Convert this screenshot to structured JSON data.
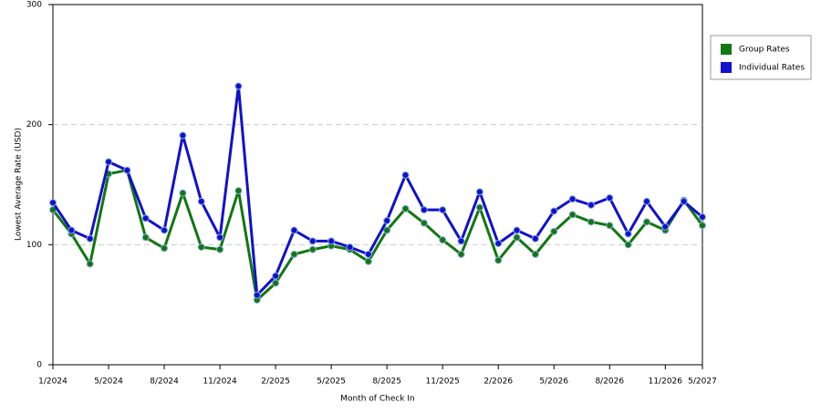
{
  "chart_data": {
    "type": "line",
    "y_label": "Lowest Average Rate (USD)",
    "x_label": "Month of Check In",
    "categories": [
      "1/2024",
      null,
      null,
      "5/2024",
      null,
      null,
      "8/2024",
      null,
      null,
      "11/2024",
      null,
      null,
      "2/2025",
      null,
      null,
      "5/2025",
      null,
      null,
      "8/2025",
      null,
      null,
      "11/2025",
      null,
      null,
      "2/2026",
      null,
      null,
      "5/2026",
      null,
      null,
      "8/2026",
      null,
      null,
      "11/2026",
      null,
      "5/2027"
    ],
    "series": [
      {
        "name": "Group Rates",
        "color": "#117711",
        "values": [
          129,
          109,
          84,
          159,
          162,
          106,
          97,
          143,
          98,
          96,
          145,
          54,
          68,
          92,
          96,
          99,
          96,
          86,
          112,
          130,
          118,
          104,
          92,
          131,
          87,
          106,
          92,
          111,
          125,
          119,
          116,
          100,
          119,
          112,
          137,
          116
        ]
      },
      {
        "name": "Individual Rates",
        "color": "#1111cc",
        "values": [
          135,
          112,
          105,
          169,
          162,
          122,
          112,
          191,
          136,
          106,
          232,
          58,
          74,
          112,
          103,
          103,
          98,
          92,
          120,
          158,
          129,
          129,
          103,
          144,
          101,
          112,
          105,
          128,
          138,
          133,
          139,
          109,
          136,
          115,
          136,
          123
        ]
      }
    ],
    "ylim": [
      0,
      300
    ],
    "yticks": [
      0,
      100,
      200,
      300
    ],
    "grid": true,
    "legend": "right"
  }
}
